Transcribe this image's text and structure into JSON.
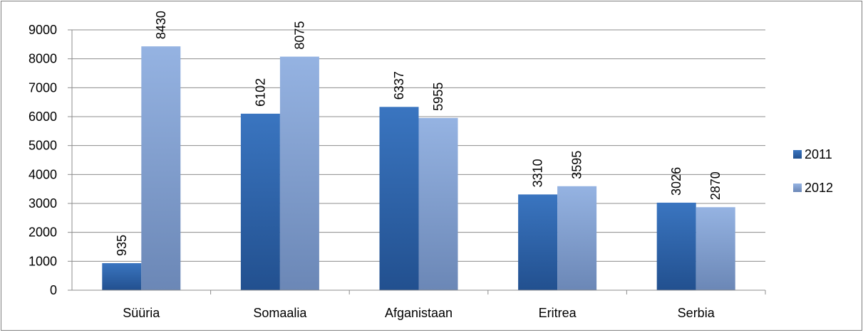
{
  "chart_data": {
    "type": "bar",
    "title": "",
    "xlabel": "",
    "ylabel": "",
    "categories": [
      "Süüria",
      "Somaalia",
      "Afganistaan",
      "Eritrea",
      "Serbia"
    ],
    "series": [
      {
        "name": "2011",
        "values": [
          935,
          6102,
          6337,
          3310,
          3026
        ],
        "color_top": "#3a75c0",
        "color_bottom": "#22508f"
      },
      {
        "name": "2012",
        "values": [
          8430,
          8075,
          5955,
          3595,
          2870
        ],
        "color_top": "#95b3e2",
        "color_bottom": "#6b87b6"
      }
    ],
    "ylim": [
      0,
      9000
    ],
    "yticks": [
      0,
      1000,
      2000,
      3000,
      4000,
      5000,
      6000,
      7000,
      8000,
      9000
    ],
    "grid": true,
    "legend_position": "right",
    "data_labels": "rotated-above-bars"
  }
}
